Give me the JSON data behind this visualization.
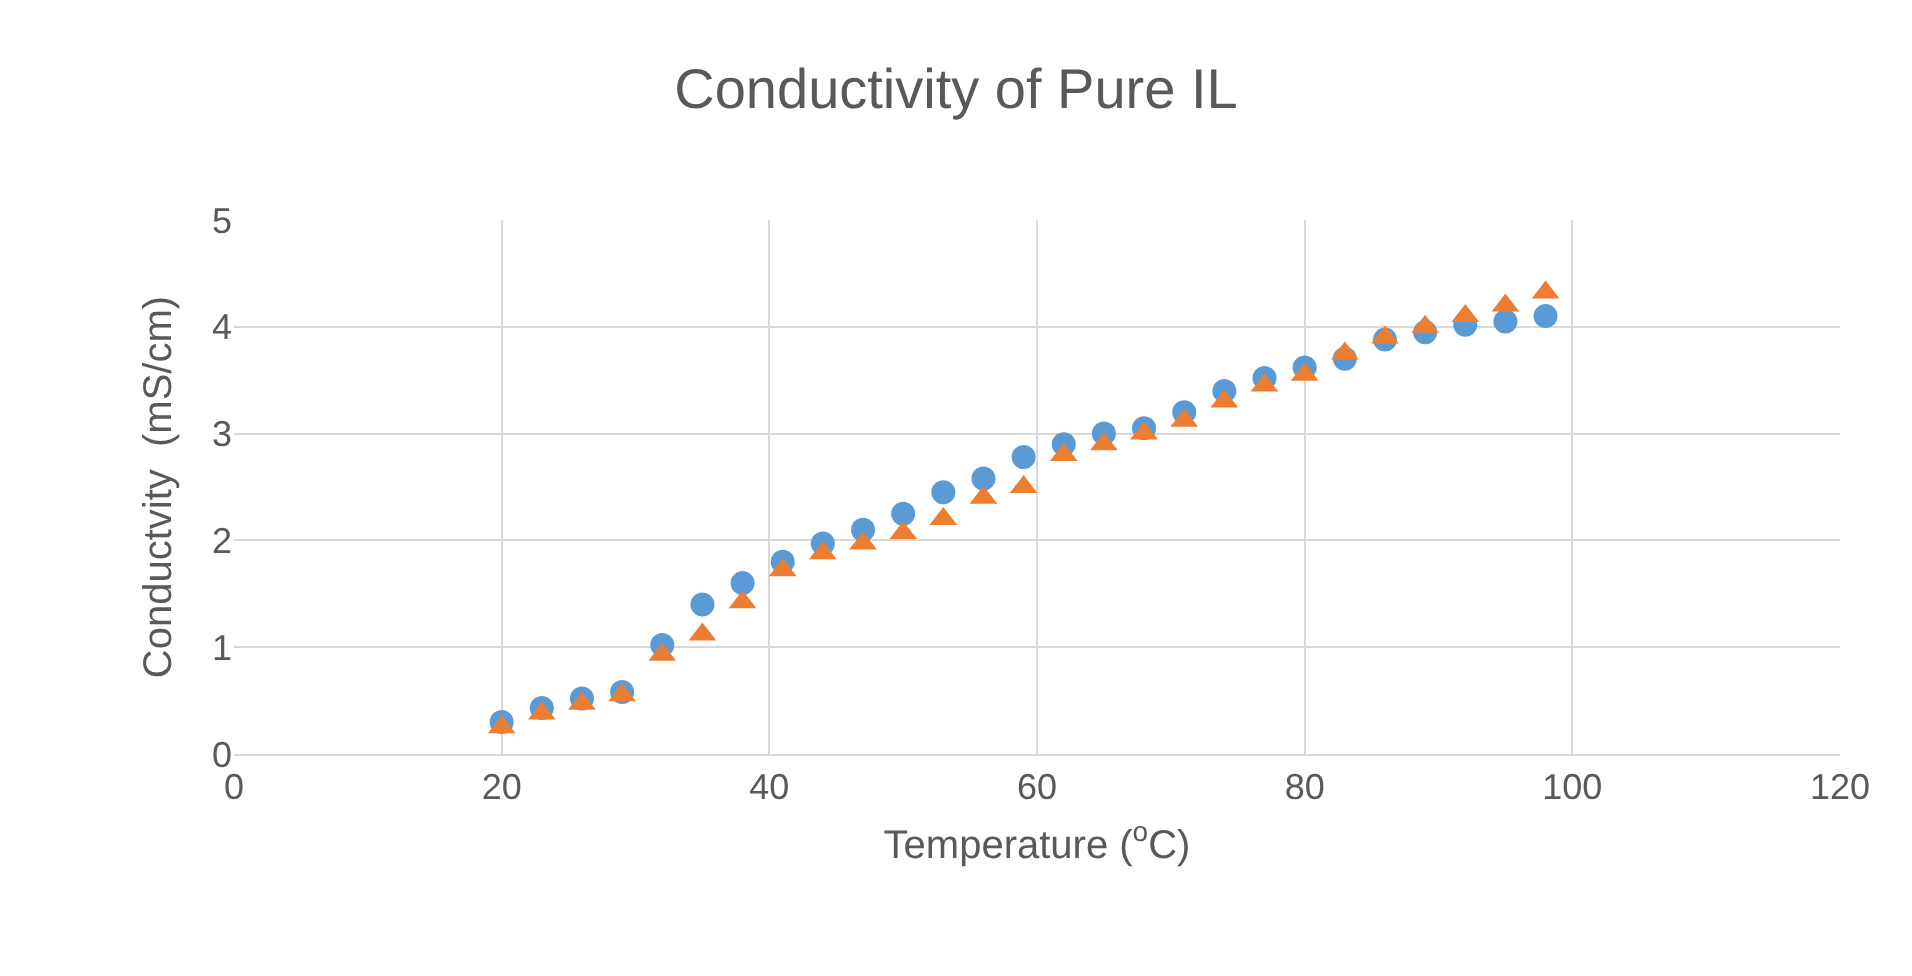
{
  "chart_data": {
    "type": "scatter",
    "title": "Conductivity of Pure IL",
    "xlabel": "Temperature ($^{o}$C)",
    "ylabel": "Conductvity  (mS/cm)",
    "x": [
      20,
      23,
      26,
      29,
      32,
      35,
      38,
      41,
      44,
      47,
      50,
      53,
      56,
      59,
      62,
      65,
      68,
      71,
      74,
      77,
      80,
      83,
      86,
      89,
      92,
      95,
      98
    ],
    "series": [
      {
        "color": "#5b9bd5",
        "marker": "circle",
        "values": [
          0.3,
          0.43,
          0.52,
          0.58,
          1.02,
          1.4,
          1.6,
          1.8,
          1.97,
          2.1,
          2.25,
          2.45,
          2.58,
          2.78,
          2.9,
          3.0,
          3.05,
          3.2,
          3.4,
          3.52,
          3.62,
          3.7,
          3.88,
          3.95,
          4.02,
          4.05,
          4.1
        ]
      },
      {
        "color": "#ed7d31",
        "marker": "triangle",
        "values": [
          0.25,
          0.38,
          0.47,
          0.55,
          0.93,
          1.12,
          1.42,
          1.72,
          1.88,
          1.97,
          2.07,
          2.2,
          2.4,
          2.5,
          2.8,
          2.9,
          3.0,
          3.12,
          3.3,
          3.45,
          3.55,
          3.75,
          3.9,
          4.0,
          4.1,
          4.2,
          4.32
        ]
      }
    ],
    "xlim": [
      0,
      120
    ],
    "xticks": [
      0,
      20,
      40,
      60,
      80,
      100,
      120
    ],
    "ylim": [
      0,
      5
    ],
    "yticks": [
      0,
      1,
      2,
      3,
      4,
      5
    ],
    "grid": true
  }
}
